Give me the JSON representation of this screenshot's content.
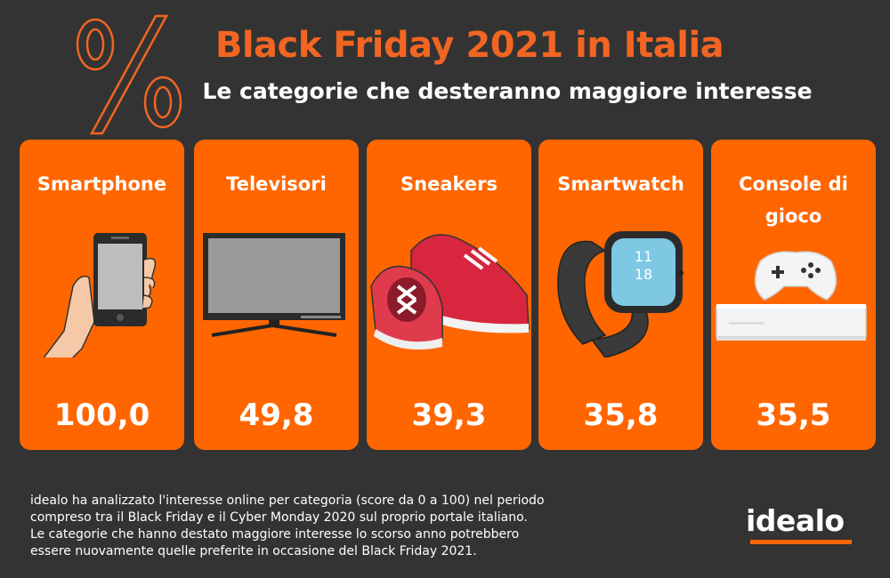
{
  "header": {
    "title": "Black Friday 2021 in Italia",
    "subtitle": "Le categorie che desteranno maggiore interesse"
  },
  "categories": [
    {
      "label": "Smartphone",
      "value": "100,0",
      "icon": "smartphone-in-hand-icon"
    },
    {
      "label": "Televisori",
      "value": "49,8",
      "icon": "television-icon"
    },
    {
      "label": "Sneakers",
      "value": "39,3",
      "icon": "sneakers-icon"
    },
    {
      "label": "Smartwatch",
      "value": "35,8",
      "icon": "smartwatch-icon"
    },
    {
      "label": "Console di gioco",
      "value": "35,5",
      "icon": "game-console-icon"
    }
  ],
  "footnote": [
    "idealo ha analizzato l'interesse online per categoria (score da 0 a 100) nel periodo",
    "compreso tra il Black Friday e il Cyber Monday 2020  sul proprio portale italiano.",
    "Le categorie che hanno destato maggiore interesse lo scorso anno potrebbero",
    "essere nuovamente quelle preferite in occasione del Black Friday 2021."
  ],
  "brand": {
    "logo": "idealo",
    "accent_color": "#FF6600",
    "title_color": "#F26522",
    "background_color": "#333333"
  }
}
